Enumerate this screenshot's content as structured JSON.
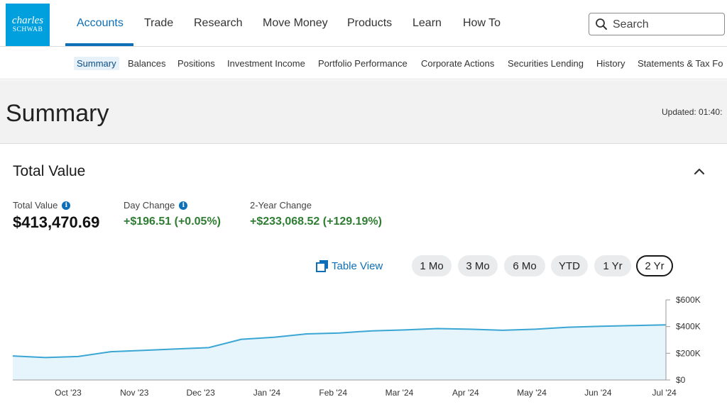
{
  "brand": {
    "line1": "charles",
    "line2": "SCHWAB"
  },
  "nav": {
    "items": [
      "Accounts",
      "Trade",
      "Research",
      "Move Money",
      "Products",
      "Learn",
      "How To"
    ],
    "active": "Accounts",
    "search_placeholder": "Search"
  },
  "subnav": {
    "items": [
      "Summary",
      "Balances",
      "Positions",
      "Investment Income",
      "Portfolio Performance",
      "Corporate Actions",
      "Securities Lending",
      "History",
      "Statements & Tax Fo"
    ],
    "active": "Summary"
  },
  "page": {
    "title": "Summary",
    "updated": "Updated: 01:40:"
  },
  "total_value": {
    "heading": "Total Value",
    "stats": [
      {
        "label": "Total Value",
        "value": "$413,470.69",
        "info": true
      },
      {
        "label": "Day Change",
        "value": "+$196.51 (+0.05%)",
        "info": true
      },
      {
        "label": "2-Year Change",
        "value": "+$233,068.52 (+129.19%)",
        "info": false
      }
    ]
  },
  "controls": {
    "table_view": "Table View",
    "ranges": [
      "1 Mo",
      "3 Mo",
      "6 Mo",
      "YTD",
      "1 Yr",
      "2 Yr"
    ],
    "selected_range": "2 Yr"
  },
  "colors": {
    "brand_blue": "#00a0df",
    "link_blue": "#0d6fb8",
    "positive_green": "#2e7d32",
    "chart_line": "#3aa6d3",
    "chart_fill": "#e6f4fb"
  },
  "chart_data": {
    "type": "area",
    "x_ticks": [
      "Oct '23",
      "Nov '23",
      "Dec '23",
      "Jan '24",
      "Feb '24",
      "Mar '24",
      "Apr '24",
      "May '24",
      "Jun '24",
      "Jul '24"
    ],
    "y_ticks": [
      "$600K",
      "$400K",
      "$200K",
      "$0"
    ],
    "ylim": [
      0,
      600000
    ],
    "y_axis_position": "right",
    "series": [
      {
        "points": [
          [
            "Sep '23 mid",
            180000
          ],
          [
            "Oct '23",
            168000
          ],
          [
            "Oct '23 late",
            176000
          ],
          [
            "Nov '23",
            212000
          ],
          [
            "Nov '23 mid",
            222000
          ],
          [
            "Dec '23",
            232000
          ],
          [
            "Dec '23 late",
            242000
          ],
          [
            "Jan '24",
            305000
          ],
          [
            "Jan '24 mid",
            320000
          ],
          [
            "Feb '24",
            345000
          ],
          [
            "Feb '24 mid",
            352000
          ],
          [
            "Mar '24",
            368000
          ],
          [
            "Mar '24 mid",
            375000
          ],
          [
            "Apr '24",
            385000
          ],
          [
            "Apr '24 mid",
            380000
          ],
          [
            "May '24",
            372000
          ],
          [
            "May '24 mid",
            380000
          ],
          [
            "Jun '24",
            395000
          ],
          [
            "Jun '24 mid",
            402000
          ],
          [
            "Jul '24",
            408000
          ],
          [
            "Jul '24 end",
            413000
          ]
        ]
      }
    ]
  }
}
